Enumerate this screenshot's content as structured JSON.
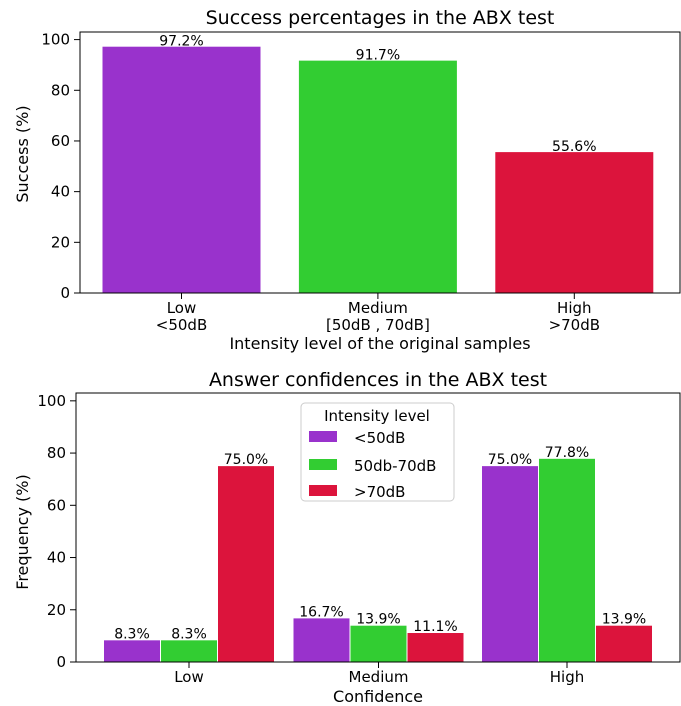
{
  "chart_data": [
    {
      "type": "bar",
      "title": "Success percentages in the ABX test",
      "xlabel": "Intensity level of the original samples",
      "ylabel": "Success (%)",
      "ylim": [
        0,
        103
      ],
      "yticks": [
        0,
        20,
        40,
        60,
        80,
        100
      ],
      "categories": [
        [
          "Low",
          "<50dB"
        ],
        [
          "Medium",
          "[50dB , 70dB]"
        ],
        [
          "High",
          ">70dB"
        ]
      ],
      "values": [
        97.2,
        91.7,
        55.6
      ],
      "value_labels": [
        "97.2%",
        "91.7%",
        "55.6%"
      ],
      "colors": [
        "#9932cc",
        "#32cd32",
        "#dc143c"
      ],
      "grid": false
    },
    {
      "type": "bar",
      "title": "Answer confidences in the ABX test",
      "xlabel": "Confidence",
      "ylabel": "Frequency (%)",
      "ylim": [
        0,
        103
      ],
      "yticks": [
        0,
        20,
        40,
        60,
        80,
        100
      ],
      "categories": [
        "Low",
        "Medium",
        "High"
      ],
      "legend_title": "Intensity level",
      "legend_position": "top-center",
      "series": [
        {
          "name": "<50dB",
          "color": "#9932cc",
          "values": [
            8.3,
            16.7,
            75.0
          ],
          "labels": [
            "8.3%",
            "16.7%",
            "75.0%"
          ]
        },
        {
          "name": "50db-70dB",
          "color": "#32cd32",
          "values": [
            8.3,
            13.9,
            77.8
          ],
          "labels": [
            "8.3%",
            "13.9%",
            "77.8%"
          ]
        },
        {
          "name": ">70dB",
          "color": "#dc143c",
          "values": [
            75.0,
            11.1,
            13.9
          ],
          "labels": [
            "75.0%",
            "11.1%",
            "13.9%"
          ]
        }
      ],
      "grid": false
    }
  ]
}
